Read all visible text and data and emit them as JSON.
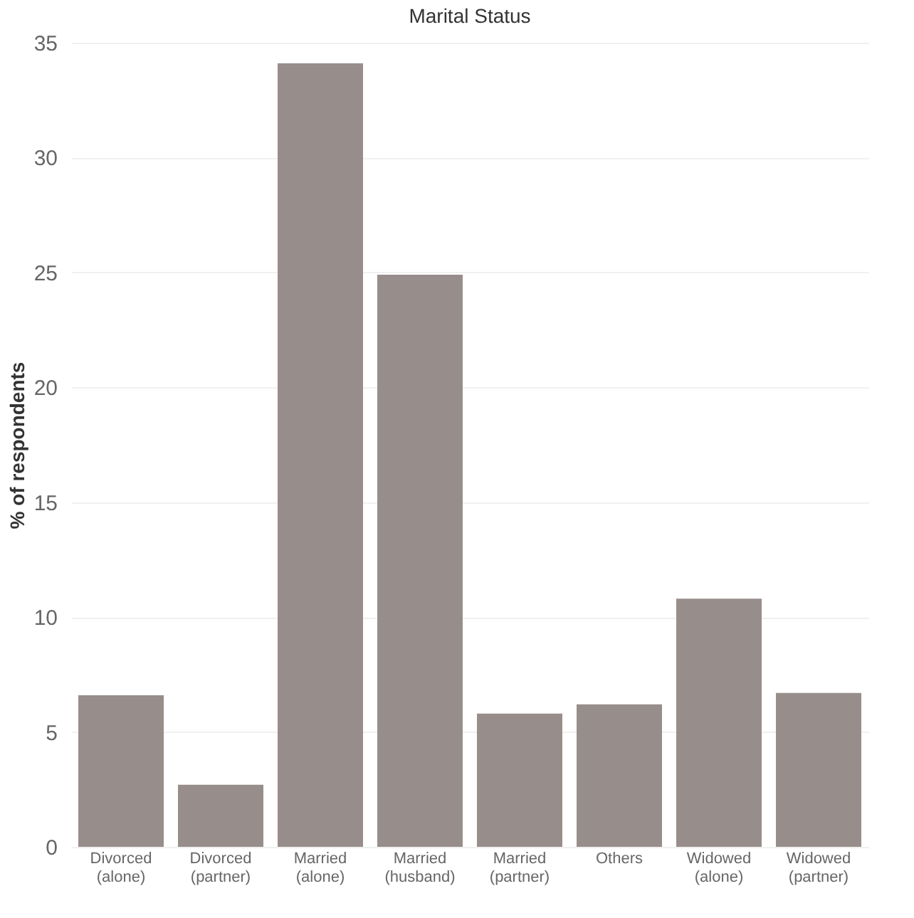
{
  "chart_data": {
    "type": "bar",
    "title": "Marital Status",
    "ylabel": "% of respondents",
    "categories": [
      "Divorced\n(alone)",
      "Divorced\n(partner)",
      "Married\n(alone)",
      "Married\n(husband)",
      "Married\n(partner)",
      "Others",
      "Widowed\n(alone)",
      "Widowed\n(partner)"
    ],
    "values": [
      6.6,
      2.7,
      34.1,
      24.9,
      5.8,
      6.2,
      10.8,
      6.7
    ],
    "color": "#978e8b",
    "ylim": [
      0,
      35
    ],
    "yticks": [
      0,
      5,
      10,
      15,
      20,
      25,
      30,
      35
    ],
    "grid": "y"
  }
}
